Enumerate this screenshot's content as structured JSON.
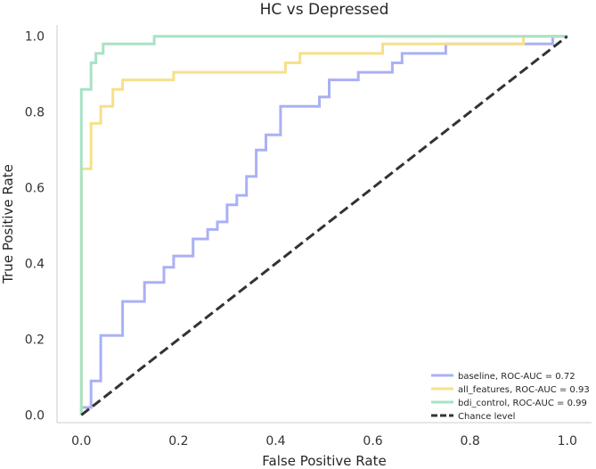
{
  "chart_data": {
    "type": "line",
    "title": "HC vs Depressed",
    "xlabel": "False Positive Rate",
    "ylabel": "True Positive Rate",
    "xlim": [
      -0.05,
      1.05
    ],
    "ylim": [
      -0.02,
      1.03
    ],
    "x_ticks": [
      0.0,
      0.2,
      0.4,
      0.6,
      0.8,
      1.0
    ],
    "y_ticks": [
      0.0,
      0.2,
      0.4,
      0.6,
      0.8,
      1.0
    ],
    "x_tick_labels": [
      "0.0",
      "0.2",
      "0.4",
      "0.6",
      "0.8",
      "1.0"
    ],
    "y_tick_labels": [
      "0.0",
      "0.2",
      "0.4",
      "0.6",
      "0.8",
      "1.0"
    ],
    "grid": false,
    "legend_position": "lower-right",
    "series": [
      {
        "name": "baseline",
        "label": "baseline, ROC-AUC = 0.72",
        "color": "#aab0f5",
        "style": "solid",
        "x": [
          0.0,
          0.0,
          0.02,
          0.02,
          0.04,
          0.04,
          0.085,
          0.085,
          0.13,
          0.13,
          0.17,
          0.17,
          0.19,
          0.19,
          0.23,
          0.23,
          0.26,
          0.26,
          0.28,
          0.28,
          0.3,
          0.3,
          0.32,
          0.32,
          0.34,
          0.34,
          0.36,
          0.36,
          0.38,
          0.38,
          0.41,
          0.41,
          0.49,
          0.49,
          0.51,
          0.51,
          0.57,
          0.57,
          0.64,
          0.64,
          0.66,
          0.66,
          0.75,
          0.75,
          0.93,
          0.93,
          0.97,
          0.97,
          1.0
        ],
        "y": [
          0.0,
          0.02,
          0.02,
          0.09,
          0.09,
          0.21,
          0.21,
          0.3,
          0.3,
          0.35,
          0.35,
          0.39,
          0.39,
          0.42,
          0.42,
          0.465,
          0.465,
          0.49,
          0.49,
          0.51,
          0.51,
          0.555,
          0.555,
          0.58,
          0.58,
          0.63,
          0.63,
          0.7,
          0.7,
          0.74,
          0.74,
          0.815,
          0.815,
          0.84,
          0.84,
          0.885,
          0.885,
          0.905,
          0.905,
          0.93,
          0.93,
          0.955,
          0.955,
          0.98,
          0.98,
          0.98,
          0.98,
          1.0,
          1.0
        ]
      },
      {
        "name": "all_features",
        "label": "all_features, ROC-AUC = 0.93",
        "color": "#f7e08a",
        "style": "solid",
        "x": [
          0.0,
          0.0,
          0.02,
          0.02,
          0.04,
          0.04,
          0.065,
          0.065,
          0.085,
          0.085,
          0.19,
          0.19,
          0.42,
          0.42,
          0.45,
          0.45,
          0.62,
          0.62,
          0.91,
          0.91,
          1.0
        ],
        "y": [
          0.0,
          0.65,
          0.65,
          0.77,
          0.77,
          0.815,
          0.815,
          0.86,
          0.86,
          0.885,
          0.885,
          0.905,
          0.905,
          0.93,
          0.93,
          0.955,
          0.955,
          0.98,
          0.98,
          1.0,
          1.0
        ]
      },
      {
        "name": "bdi_control",
        "label": "bdi_control, ROC-AUC = 0.99",
        "color": "#a8e2c4",
        "style": "solid",
        "x": [
          0.0,
          0.0,
          0.02,
          0.02,
          0.03,
          0.03,
          0.045,
          0.045,
          0.15,
          0.15,
          1.0
        ],
        "y": [
          0.0,
          0.86,
          0.86,
          0.93,
          0.93,
          0.955,
          0.955,
          0.98,
          0.98,
          1.0,
          1.0
        ]
      },
      {
        "name": "chance",
        "label": "Chance level",
        "color": "#333333",
        "style": "dashed",
        "x": [
          0.0,
          1.0
        ],
        "y": [
          0.0,
          1.0
        ]
      }
    ]
  }
}
